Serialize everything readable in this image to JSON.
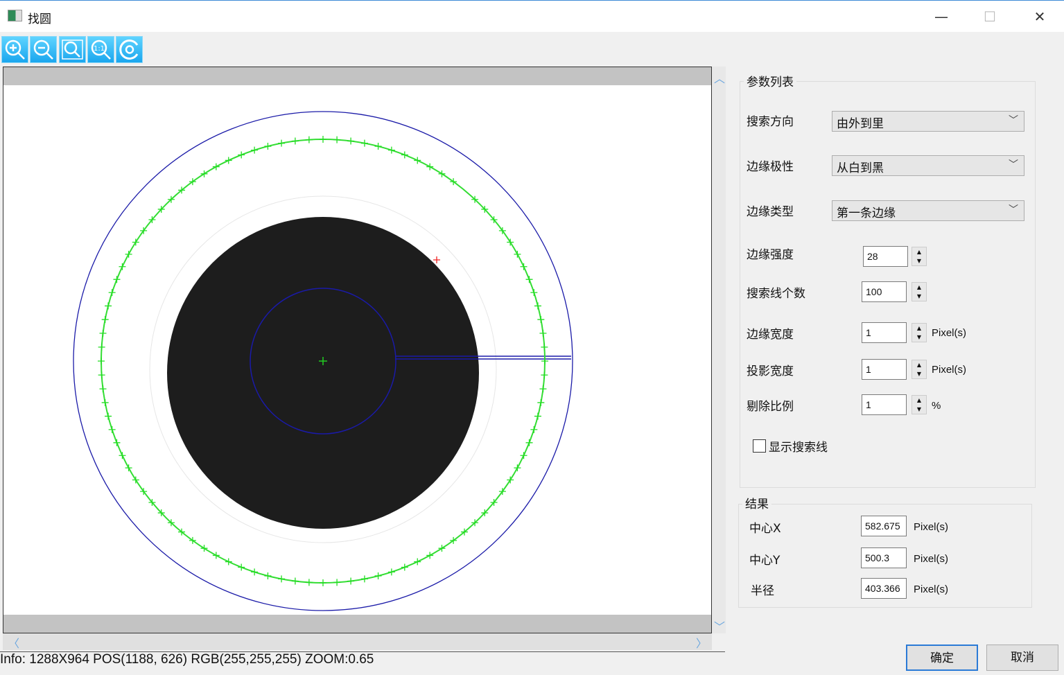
{
  "window": {
    "title": "找圆",
    "minimize": "—",
    "maximize": "☐",
    "close": "✕"
  },
  "toolbar": [
    {
      "name": "zoom-in-icon"
    },
    {
      "name": "zoom-out-icon"
    },
    {
      "name": "zoom-fit-icon"
    },
    {
      "name": "zoom-1to1-icon",
      "label": "1:1"
    },
    {
      "name": "reset-icon"
    }
  ],
  "info": "Info: 1288X964  POS(1188, 626)  RGB(255,255,255)  ZOOM:0.65",
  "params": {
    "title": "参数列表",
    "search_direction": {
      "label": "搜索方向",
      "value": "由外到里"
    },
    "edge_polarity": {
      "label": "边缘极性",
      "value": "从白到黑"
    },
    "edge_type": {
      "label": "边缘类型",
      "value": "第一条边缘"
    },
    "edge_strength": {
      "label": "边缘强度",
      "value": "28"
    },
    "search_lines": {
      "label": "搜索线个数",
      "value": "100"
    },
    "edge_width": {
      "label": "边缘宽度",
      "value": "1",
      "unit": "Pixel(s)"
    },
    "proj_width": {
      "label": "投影宽度",
      "value": "1",
      "unit": "Pixel(s)"
    },
    "reject_ratio": {
      "label": "剔除比例",
      "value": "1",
      "unit": "%"
    },
    "show_lines": {
      "label": "显示搜索线",
      "checked": false
    }
  },
  "result": {
    "title": "结果",
    "cx": {
      "label": "中心X",
      "value": "582.675",
      "unit": "Pixel(s)"
    },
    "cy": {
      "label": "中心Y",
      "value": "500.3",
      "unit": "Pixel(s)"
    },
    "r": {
      "label": "半径",
      "value": "403.366",
      "unit": "Pixel(s)"
    }
  },
  "buttons": {
    "ok": "确定",
    "cancel": "取消"
  },
  "colors": {
    "accent": "#1aa6ee",
    "roi": "#1a1aa8",
    "edge_points": "#22dd22"
  }
}
